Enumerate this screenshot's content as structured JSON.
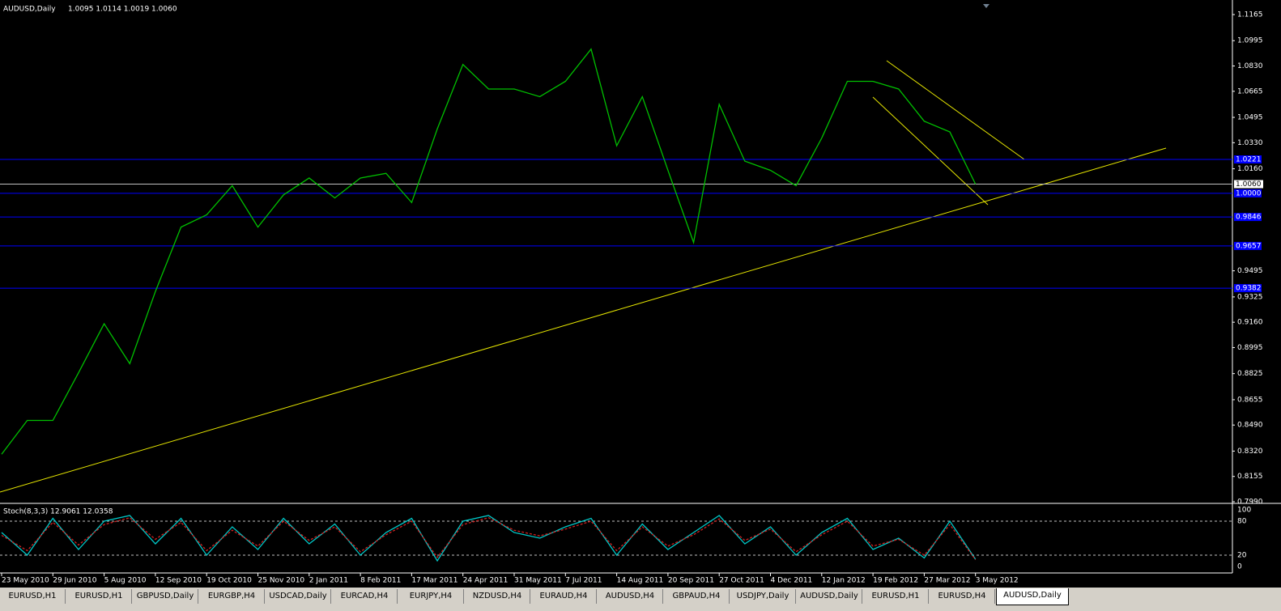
{
  "header": {
    "symbol": "AUDUSD,Daily",
    "ohlc": "1.0095 1.0114 1.0019 1.0060"
  },
  "chart_data": [
    {
      "type": "line",
      "categories": [
        "23 May 2010",
        null,
        "29 Jun 2010",
        null,
        "5 Aug 2010",
        null,
        "12 Sep 2010",
        null,
        "19 Oct 2010",
        null,
        "25 Nov 2010",
        null,
        "2 Jan 2011",
        null,
        "8 Feb 2011",
        null,
        "17 Mar 2011",
        null,
        "24 Apr 2011",
        null,
        "31 May 2011",
        null,
        "7 Jul 2011",
        null,
        "14 Aug 2011",
        null,
        "20 Sep 2011",
        null,
        "27 Oct 2011",
        null,
        "4 Dec 2011",
        null,
        "12 Jan 2012",
        null,
        "19 Feb 2012",
        null,
        "27 Mar 2012",
        null,
        "3 May 2012"
      ],
      "series": [
        {
          "color": "#00c000",
          "values": [
            0.83,
            0.852,
            0.852,
            0.883,
            0.915,
            0.889,
            0.936,
            0.978,
            0.986,
            1.005,
            0.978,
            0.999,
            1.01,
            0.997,
            1.01,
            1.013,
            0.994,
            1.042,
            1.084,
            1.068,
            1.068,
            1.063,
            1.073,
            1.094,
            1.031,
            1.063,
            1.015,
            0.968,
            1.058,
            1.021,
            1.015,
            1.005,
            1.036,
            1.073,
            1.073,
            1.068,
            1.047,
            1.04,
            1.006
          ]
        }
      ],
      "ylim": [
        0.799,
        1.126
      ],
      "yticks": [
        {
          "value": 1.1165,
          "label": "1.1165"
        },
        {
          "value": 1.0995,
          "label": "1.0995"
        },
        {
          "value": 1.083,
          "label": "1.0830"
        },
        {
          "value": 1.0665,
          "label": "1.0665"
        },
        {
          "value": 1.0495,
          "label": "1.0495"
        },
        {
          "value": 1.033,
          "label": "1.0330"
        },
        {
          "value": 1.016,
          "label": "1.0160"
        },
        {
          "value": 0.9495,
          "label": "0.9495"
        },
        {
          "value": 0.9325,
          "label": "0.9325"
        },
        {
          "value": 0.916,
          "label": "0.9160"
        },
        {
          "value": 0.8995,
          "label": "0.8995"
        },
        {
          "value": 0.8825,
          "label": "0.8825"
        },
        {
          "value": 0.8655,
          "label": "0.8655"
        },
        {
          "value": 0.849,
          "label": "0.8490"
        },
        {
          "value": 0.832,
          "label": "0.8320"
        },
        {
          "value": 0.8155,
          "label": "0.8155"
        },
        {
          "value": 0.799,
          "label": "0.7990"
        }
      ],
      "levels": [
        {
          "value": 1.0221,
          "label": "1.0221"
        },
        {
          "value": 1.0,
          "label": "1.0000"
        },
        {
          "value": 0.9846,
          "label": "0.9846"
        },
        {
          "value": 0.9657,
          "label": "0.9657"
        },
        {
          "value": 0.9382,
          "label": "0.9382"
        }
      ],
      "current_price": {
        "value": 1.006,
        "label": "1.0060"
      }
    },
    {
      "type": "line",
      "title": "Stoch(8,3,3) 12.9061 12.0358",
      "series": [
        {
          "color": "#00c8c8",
          "values": [
            60,
            20,
            85,
            30,
            80,
            90,
            40,
            85,
            20,
            70,
            30,
            85,
            40,
            75,
            20,
            60,
            85,
            10,
            80,
            90,
            60,
            50,
            70,
            85,
            20,
            75,
            30,
            60,
            90,
            40,
            70,
            20,
            60,
            85,
            30,
            50,
            15,
            80,
            12.9061
          ]
        },
        {
          "color": "#d02020",
          "values": [
            55,
            28,
            78,
            38,
            74,
            86,
            48,
            78,
            28,
            64,
            36,
            80,
            46,
            70,
            26,
            56,
            80,
            16,
            74,
            86,
            64,
            54,
            66,
            80,
            28,
            70,
            36,
            56,
            84,
            46,
            66,
            26,
            56,
            80,
            36,
            48,
            20,
            74,
            12.0358
          ]
        }
      ],
      "ylim": [
        0,
        100
      ],
      "yticks": [
        100,
        80,
        20,
        0
      ]
    }
  ],
  "tabs": [
    {
      "label": "EURUSD,H1"
    },
    {
      "label": "EURUSD,H1"
    },
    {
      "label": "GBPUSD,Daily"
    },
    {
      "label": "EURGBP,H4"
    },
    {
      "label": "USDCAD,Daily"
    },
    {
      "label": "EURCAD,H4"
    },
    {
      "label": "EURJPY,H4"
    },
    {
      "label": "NZDUSD,H4"
    },
    {
      "label": "EURAUD,H4"
    },
    {
      "label": "AUDUSD,H4"
    },
    {
      "label": "GBPAUD,H4"
    },
    {
      "label": "USDJPY,Daily"
    },
    {
      "label": "AUDUSD,Daily"
    },
    {
      "label": "EURUSD,H1"
    },
    {
      "label": "EURUSD,H4"
    },
    {
      "label": "AUDUSD,Daily",
      "active": true
    }
  ]
}
